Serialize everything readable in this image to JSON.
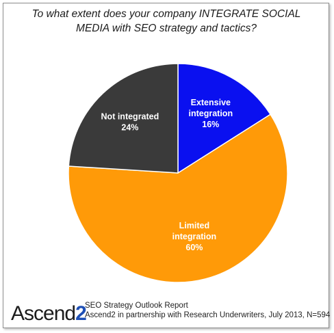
{
  "title_line1": "To what extent does your company INTEGRATE SOCIAL",
  "title_line2": "MEDIA with SEO strategy and tactics?",
  "chart_data": {
    "type": "pie",
    "title": "To what extent does your company INTEGRATE SOCIAL MEDIA with SEO strategy and tactics?",
    "start": "top, clockwise",
    "slices": [
      {
        "label_lines": [
          "Extensive",
          "integration"
        ],
        "value": 16,
        "value_label": "16%",
        "color": "#0a10f0",
        "text_color": "#ffffff"
      },
      {
        "label_lines": [
          "Limited",
          "integration"
        ],
        "value": 60,
        "value_label": "60%",
        "color": "#ff9a08",
        "text_color": "#ffffff"
      },
      {
        "label_lines": [
          "Not integrated"
        ],
        "value": 24,
        "value_label": "24%",
        "color": "#3a3a3a",
        "text_color": "#ffffff"
      }
    ]
  },
  "logo": {
    "text": "Ascend",
    "number": "2"
  },
  "source": {
    "line1": "SEO Strategy Outlook Report",
    "line2": "Ascend2 in partnership with Research Underwriters, July 2013, N=594"
  }
}
